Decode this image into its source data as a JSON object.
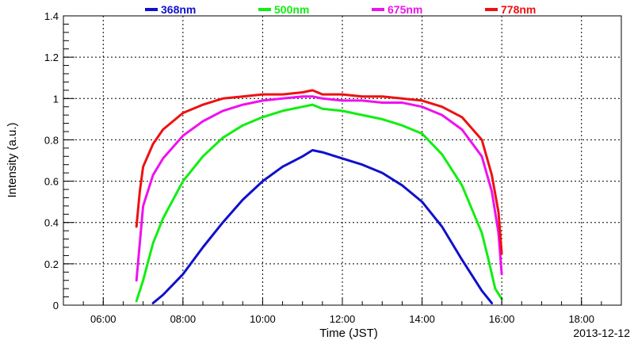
{
  "chart_data": {
    "type": "line",
    "title": "",
    "xlabel": "Time (JST)",
    "ylabel": "Intensity (a.u.)",
    "date": "2013-12-12",
    "xlim": [
      "05:00",
      "19:00"
    ],
    "ylim": [
      0,
      1.4
    ],
    "grid": true,
    "legend_position": "top",
    "x_ticks": [
      "06:00",
      "08:00",
      "10:00",
      "12:00",
      "14:00",
      "16:00",
      "18:00"
    ],
    "y_ticks": [
      "0",
      "0.2",
      "0.4",
      "0.6",
      "0.8",
      "1",
      "1.2",
      "1.4"
    ],
    "series": [
      {
        "name": "368nm",
        "color": "#1010cc",
        "x": [
          "07:15",
          "07:30",
          "08:00",
          "08:30",
          "09:00",
          "09:30",
          "10:00",
          "10:30",
          "11:00",
          "11:15",
          "11:30",
          "12:00",
          "12:30",
          "13:00",
          "13:30",
          "14:00",
          "14:30",
          "15:00",
          "15:30",
          "15:45"
        ],
        "y": [
          0.01,
          0.05,
          0.15,
          0.28,
          0.4,
          0.51,
          0.6,
          0.67,
          0.72,
          0.75,
          0.74,
          0.71,
          0.68,
          0.64,
          0.58,
          0.5,
          0.38,
          0.22,
          0.07,
          0.01
        ]
      },
      {
        "name": "500nm",
        "color": "#11ee11",
        "x": [
          "06:50",
          "07:00",
          "07:15",
          "07:30",
          "08:00",
          "08:30",
          "09:00",
          "09:30",
          "10:00",
          "10:30",
          "11:00",
          "11:15",
          "11:30",
          "12:00",
          "12:30",
          "13:00",
          "13:30",
          "14:00",
          "14:30",
          "15:00",
          "15:30",
          "15:40",
          "15:50",
          "16:00"
        ],
        "y": [
          0.02,
          0.12,
          0.3,
          0.42,
          0.6,
          0.72,
          0.81,
          0.87,
          0.91,
          0.94,
          0.96,
          0.97,
          0.95,
          0.94,
          0.92,
          0.9,
          0.87,
          0.83,
          0.73,
          0.58,
          0.35,
          0.22,
          0.08,
          0.03
        ]
      },
      {
        "name": "675nm",
        "color": "#ee11ee",
        "x": [
          "06:50",
          "06:55",
          "07:00",
          "07:15",
          "07:30",
          "08:00",
          "08:30",
          "09:00",
          "09:30",
          "10:00",
          "10:30",
          "11:00",
          "11:15",
          "11:30",
          "12:00",
          "12:30",
          "13:00",
          "13:30",
          "14:00",
          "14:30",
          "15:00",
          "15:30",
          "15:45",
          "15:55",
          "16:00"
        ],
        "y": [
          0.12,
          0.3,
          0.48,
          0.63,
          0.71,
          0.82,
          0.89,
          0.94,
          0.97,
          0.99,
          1.0,
          1.01,
          1.01,
          1.0,
          0.99,
          0.99,
          0.98,
          0.98,
          0.96,
          0.92,
          0.85,
          0.72,
          0.55,
          0.35,
          0.15
        ]
      },
      {
        "name": "778nm",
        "color": "#ee1111",
        "x": [
          "06:50",
          "06:55",
          "07:00",
          "07:15",
          "07:30",
          "08:00",
          "08:30",
          "09:00",
          "09:30",
          "10:00",
          "10:30",
          "11:00",
          "11:15",
          "11:30",
          "12:00",
          "12:30",
          "13:00",
          "13:30",
          "14:00",
          "14:30",
          "15:00",
          "15:30",
          "15:45",
          "15:55",
          "16:00"
        ],
        "y": [
          0.38,
          0.55,
          0.67,
          0.78,
          0.85,
          0.93,
          0.97,
          1.0,
          1.01,
          1.02,
          1.02,
          1.03,
          1.04,
          1.02,
          1.02,
          1.01,
          1.01,
          1.0,
          0.99,
          0.96,
          0.91,
          0.8,
          0.63,
          0.45,
          0.25
        ]
      }
    ]
  }
}
